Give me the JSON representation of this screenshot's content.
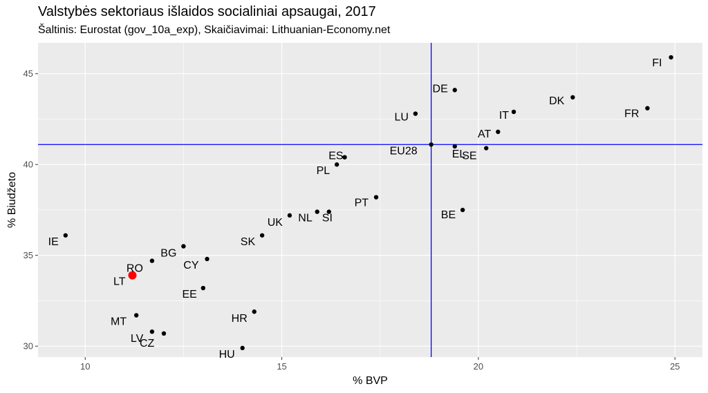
{
  "chart_data": {
    "type": "scatter",
    "title": "Valstybės sektoriaus išlaidos socialiniai apsaugai, 2017",
    "subtitle": "Šaltinis: Eurostat (gov_10a_exp), Skaičiavimai: Lithuanian-Economy.net",
    "xlabel": "% BVP",
    "ylabel": "% Biudžeto",
    "xlim": [
      8.8,
      25.7
    ],
    "ylim": [
      29.4,
      46.7
    ],
    "x_ticks": [
      10,
      15,
      20,
      25
    ],
    "y_ticks": [
      30,
      35,
      40,
      45
    ],
    "grid": true,
    "reference_lines": {
      "x": 18.8,
      "y": 41.1,
      "color": "#0000ff"
    },
    "colors": {
      "point": "#000000",
      "highlight": "#ff0000",
      "panel": "#ebebeb",
      "grid": "#ffffff"
    },
    "points": [
      {
        "label": "FI",
        "x": 24.9,
        "y": 45.9
      },
      {
        "label": "DE",
        "x": 19.4,
        "y": 44.1
      },
      {
        "label": "DK",
        "x": 22.4,
        "y": 43.7
      },
      {
        "label": "FR",
        "x": 24.3,
        "y": 43.1
      },
      {
        "label": "IT",
        "x": 20.9,
        "y": 42.9
      },
      {
        "label": "LU",
        "x": 18.4,
        "y": 42.8
      },
      {
        "label": "AT",
        "x": 20.5,
        "y": 41.8
      },
      {
        "label": "EU28",
        "x": 18.8,
        "y": 41.1
      },
      {
        "label": "EL",
        "x": 19.4,
        "y": 41.0
      },
      {
        "label": "SE",
        "x": 20.2,
        "y": 40.9
      },
      {
        "label": "ES",
        "x": 16.6,
        "y": 40.4
      },
      {
        "label": "PL",
        "x": 16.4,
        "y": 40.0
      },
      {
        "label": "PT",
        "x": 17.4,
        "y": 38.2
      },
      {
        "label": "BE",
        "x": 19.6,
        "y": 37.5
      },
      {
        "label": "SI",
        "x": 16.2,
        "y": 37.4
      },
      {
        "label": "NL",
        "x": 15.9,
        "y": 37.4
      },
      {
        "label": "UK",
        "x": 15.2,
        "y": 37.2
      },
      {
        "label": "SK",
        "x": 14.5,
        "y": 36.1
      },
      {
        "label": "IE",
        "x": 9.5,
        "y": 36.1
      },
      {
        "label": "BG",
        "x": 12.5,
        "y": 35.5
      },
      {
        "label": "CY",
        "x": 13.1,
        "y": 34.8
      },
      {
        "label": "RO",
        "x": 11.7,
        "y": 34.7
      },
      {
        "label": "LT",
        "x": 11.2,
        "y": 33.9,
        "highlight": true
      },
      {
        "label": "EE",
        "x": 13.0,
        "y": 33.2
      },
      {
        "label": "HR",
        "x": 14.3,
        "y": 31.9
      },
      {
        "label": "MT",
        "x": 11.3,
        "y": 31.7
      },
      {
        "label": "LV",
        "x": 11.7,
        "y": 30.8
      },
      {
        "label": "CZ",
        "x": 12.0,
        "y": 30.7
      },
      {
        "label": "HU",
        "x": 14.0,
        "y": 29.9
      }
    ]
  }
}
